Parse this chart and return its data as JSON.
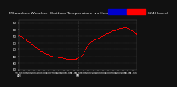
{
  "title": "Milwaukee Weather  Outdoor Temperature  vs Heat Index  per Minute  (24 Hours)",
  "title_fontsize": 3.2,
  "background_color": "#111111",
  "plot_bg_color": "#111111",
  "grid_color": "#555555",
  "dot_color": "#ff0000",
  "dot_size": 0.5,
  "legend_blue": "#0000cc",
  "legend_red": "#ff0000",
  "ylim": [
    20,
    95
  ],
  "yticks": [
    20,
    30,
    40,
    50,
    60,
    70,
    80,
    90
  ],
  "ylabel_fontsize": 2.8,
  "xlabel_fontsize": 2.2,
  "spine_color": "#555555",
  "vline_positions": [
    360,
    720
  ],
  "x_values": [
    0,
    10,
    20,
    30,
    40,
    50,
    60,
    70,
    80,
    90,
    100,
    110,
    120,
    130,
    140,
    150,
    160,
    170,
    180,
    190,
    200,
    210,
    220,
    230,
    240,
    250,
    260,
    270,
    280,
    290,
    300,
    310,
    320,
    330,
    340,
    350,
    360,
    370,
    380,
    390,
    400,
    410,
    420,
    430,
    440,
    450,
    460,
    470,
    480,
    490,
    500,
    510,
    520,
    530,
    540,
    550,
    560,
    570,
    580,
    590,
    600,
    610,
    620,
    630,
    640,
    650,
    660,
    670,
    680,
    690,
    700,
    710,
    720,
    730,
    740,
    750,
    760,
    770,
    780,
    790,
    800,
    810,
    820,
    830,
    840,
    850,
    860,
    870,
    880,
    890,
    900,
    910,
    920,
    930,
    940,
    950,
    960,
    970,
    980,
    990,
    1000,
    1010,
    1020,
    1030,
    1040,
    1050,
    1060,
    1070,
    1080,
    1090,
    1100,
    1110,
    1120,
    1130,
    1140,
    1150,
    1160,
    1170,
    1180,
    1190,
    1200,
    1210,
    1220,
    1230,
    1240,
    1250,
    1260,
    1270,
    1280,
    1290,
    1300,
    1310,
    1320,
    1330,
    1340,
    1350,
    1360,
    1370,
    1380,
    1390,
    1400,
    1410,
    1420,
    1430
  ],
  "y_values": [
    72,
    71,
    70,
    70,
    69,
    68,
    67,
    66,
    65,
    64,
    63,
    62,
    61,
    61,
    60,
    59,
    58,
    57,
    56,
    55,
    54,
    53,
    52,
    51,
    50,
    49,
    48,
    48,
    47,
    46,
    45,
    45,
    44,
    44,
    43,
    43,
    42,
    42,
    41,
    41,
    41,
    40,
    40,
    40,
    39,
    39,
    39,
    39,
    38,
    38,
    38,
    38,
    38,
    37,
    37,
    37,
    37,
    37,
    36,
    36,
    36,
    36,
    36,
    36,
    36,
    35,
    35,
    35,
    36,
    36,
    37,
    37,
    38,
    39,
    40,
    41,
    42,
    44,
    46,
    48,
    50,
    52,
    54,
    56,
    58,
    60,
    61,
    62,
    63,
    64,
    64,
    65,
    65,
    66,
    67,
    67,
    68,
    68,
    69,
    70,
    70,
    71,
    72,
    72,
    73,
    74,
    74,
    75,
    75,
    76,
    76,
    77,
    77,
    78,
    78,
    79,
    79,
    80,
    80,
    81,
    81,
    82,
    82,
    83,
    83,
    83,
    84,
    84,
    84,
    84,
    84,
    83,
    82,
    82,
    81,
    80,
    79,
    78,
    77,
    76,
    75,
    74,
    73,
    72
  ],
  "xtick_labels": [
    "12:00\nAM",
    "1:00",
    "2:00",
    "3:00",
    "4:00",
    "5:00",
    "6:00",
    "7:00",
    "8:00",
    "9:00",
    "10:00",
    "11:00",
    "12:00\nPM",
    "1:00",
    "2:00",
    "3:00",
    "4:00",
    "5:00",
    "6:00",
    "7:00",
    "8:00",
    "9:00",
    "10:00",
    "11:00"
  ],
  "xtick_positions": [
    0,
    60,
    120,
    180,
    240,
    300,
    360,
    420,
    480,
    540,
    600,
    660,
    720,
    780,
    840,
    900,
    960,
    1020,
    1080,
    1140,
    1200,
    1260,
    1320,
    1380
  ]
}
